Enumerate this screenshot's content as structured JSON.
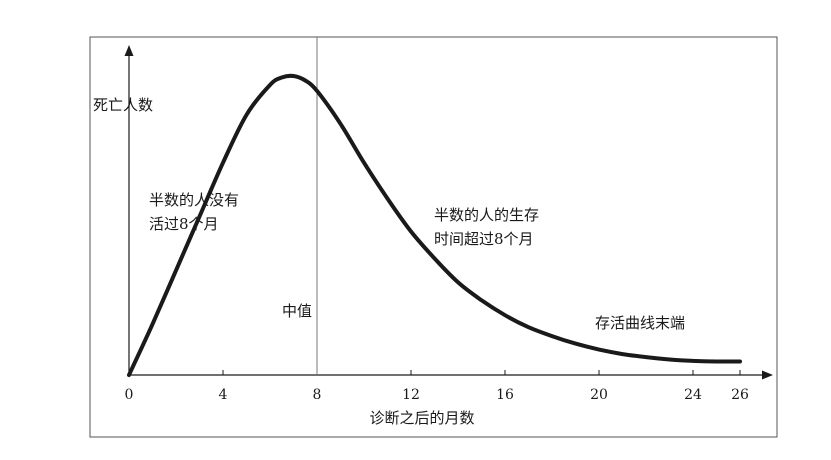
{
  "chart_data": {
    "type": "line",
    "title": "",
    "ylabel": "死亡人数",
    "xlabel": "诊断之后的月数",
    "xlim": [
      0,
      26
    ],
    "x_ticks": [
      0,
      4,
      8,
      12,
      16,
      20,
      24,
      26
    ],
    "ylim": [
      0,
      1
    ],
    "y_ticks_shown": false,
    "grid": false,
    "legend": "none",
    "curve_color": "#1a1a1a",
    "series": [
      {
        "x": [
          0,
          1,
          2,
          3,
          4,
          5,
          6,
          6.5,
          7,
          7.5,
          8,
          9,
          10,
          11,
          12,
          13,
          14,
          15,
          16,
          17,
          18,
          19,
          20,
          21,
          22,
          23,
          24,
          25,
          26
        ],
        "values": [
          0,
          0.17,
          0.35,
          0.53,
          0.71,
          0.87,
          0.97,
          0.995,
          1.0,
          0.985,
          0.95,
          0.84,
          0.71,
          0.59,
          0.48,
          0.39,
          0.31,
          0.25,
          0.2,
          0.16,
          0.13,
          0.105,
          0.085,
          0.07,
          0.06,
          0.052,
          0.047,
          0.045,
          0.045
        ]
      }
    ],
    "reference_line": {
      "x": 8,
      "label": "中值"
    },
    "annotations": [
      {
        "lines": [
          "半数的人没有",
          "活过8个月"
        ]
      },
      {
        "lines": [
          "半数的人的生存",
          "时间超过8个月"
        ]
      },
      {
        "lines": [
          "存活曲线末端"
        ]
      }
    ]
  }
}
